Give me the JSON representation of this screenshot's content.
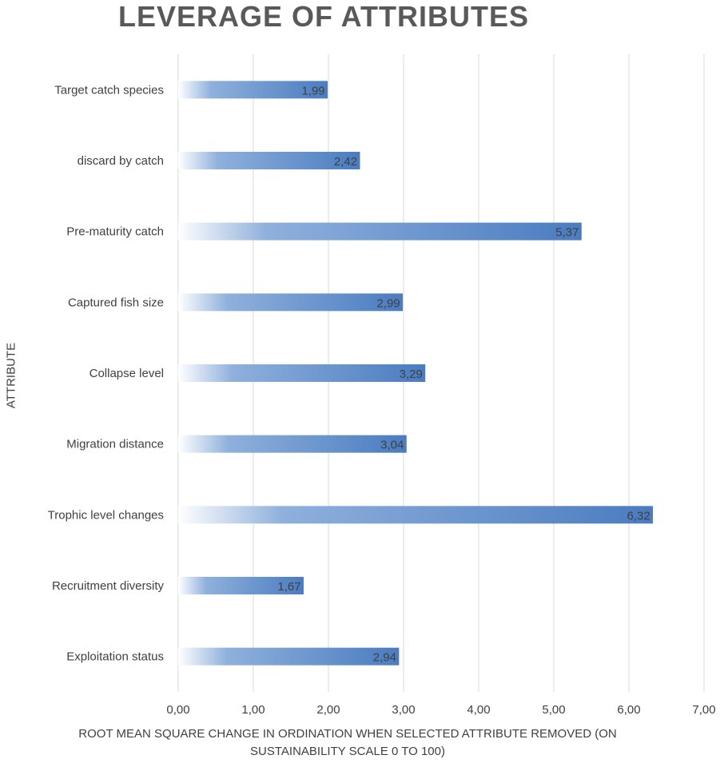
{
  "chart_data": {
    "type": "bar",
    "orientation": "horizontal",
    "title": "LEVERAGE OF ATTRIBUTES",
    "xlabel_line1": "ROOT MEAN SQUARE CHANGE IN ORDINATION WHEN SELECTED ATTRIBUTE REMOVED (ON",
    "xlabel_line2": "SUSTAINABILITY SCALE 0 TO 100)",
    "ylabel": "ATTRIBUTE",
    "categories": [
      "Target catch species",
      "discard by catch",
      "Pre-maturity catch",
      "Captured fish size",
      "Collapse level",
      "Migration distance",
      "Trophic level changes",
      "Recruitment diversity",
      "Exploitation status"
    ],
    "values": [
      1.99,
      2.42,
      5.37,
      2.99,
      3.29,
      3.04,
      6.32,
      1.67,
      2.94
    ],
    "value_labels": [
      "1,99",
      "2,42",
      "5,37",
      "2,99",
      "3,29",
      "3,04",
      "6,32",
      "1,67",
      "2,94"
    ],
    "xlim": [
      0,
      7
    ],
    "x_ticks": [
      0,
      1,
      2,
      3,
      4,
      5,
      6,
      7
    ],
    "x_tick_labels": [
      "0,00",
      "1,00",
      "2,00",
      "3,00",
      "4,00",
      "5,00",
      "6,00",
      "7,00"
    ],
    "grid": "vertical",
    "legend": "none",
    "bar_color": "#4a7cc0",
    "bar_fill": "gradient white to blue"
  }
}
